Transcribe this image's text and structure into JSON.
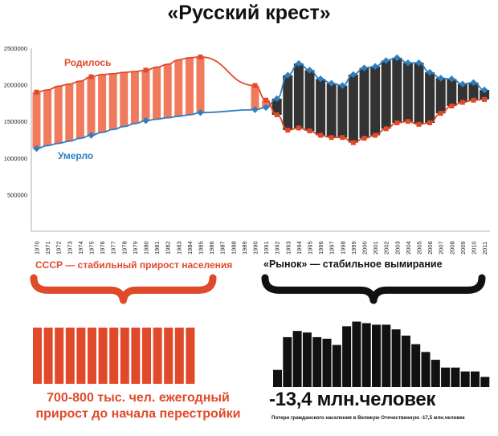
{
  "title": "«Русский крест»",
  "chart_data": {
    "type": "bar+line",
    "title": "«Русский крест»",
    "xlabel": "",
    "ylabel": "",
    "ylim": [
      0,
      2500000
    ],
    "y_ticks": [
      500000,
      1000000,
      1500000,
      2000000,
      2500000
    ],
    "x": [
      "1970",
      "1971",
      "1972",
      "1973",
      "1974",
      "1975",
      "1976",
      "1977",
      "1978",
      "1979",
      "1980",
      "1981",
      "1982",
      "1983",
      "1984",
      "1985",
      "1986",
      "1987",
      "1988",
      "1989",
      "1990",
      "1991",
      "1992",
      "1993",
      "1994",
      "1995",
      "1996",
      "1997",
      "1998",
      "1999",
      "2000",
      "2001",
      "2002",
      "2003",
      "2004",
      "2005",
      "2006",
      "2007",
      "2008",
      "2009",
      "2010",
      "2011"
    ],
    "series": [
      {
        "name": "Родилось",
        "color": "#e04a2a",
        "values": [
          1900000,
          1930000,
          1980000,
          2010000,
          2050000,
          2110000,
          2140000,
          2150000,
          2170000,
          2180000,
          2200000,
          2240000,
          2280000,
          2340000,
          2370000,
          2380000,
          null,
          null,
          null,
          null,
          1990000,
          1790000,
          1590000,
          1380000,
          1410000,
          1370000,
          1310000,
          1280000,
          1280000,
          1210000,
          1270000,
          1310000,
          1400000,
          1480000,
          1500000,
          1460000,
          1480000,
          1610000,
          1710000,
          1760000,
          1790000,
          1800000
        ]
      },
      {
        "name": "Умерло",
        "color": "#2e7fc0",
        "values": [
          1130000,
          1170000,
          1200000,
          1230000,
          1270000,
          1310000,
          1350000,
          1390000,
          1430000,
          1470000,
          1510000,
          1530000,
          1550000,
          1570000,
          1590000,
          1620000,
          null,
          null,
          null,
          null,
          1660000,
          1690000,
          1810000,
          2130000,
          2290000,
          2200000,
          2080000,
          2020000,
          1990000,
          2140000,
          2230000,
          2250000,
          2330000,
          2370000,
          2300000,
          2300000,
          2170000,
          2090000,
          2080000,
          2010000,
          2030000,
          1930000
        ]
      }
    ],
    "gap_years_with_line": [
      "1986",
      "1987",
      "1988",
      "1989"
    ],
    "bottom_bars": {
      "left_count": 15,
      "right_values": [
        0.22,
        0.64,
        0.72,
        0.7,
        0.64,
        0.62,
        0.54,
        0.78,
        0.84,
        0.82,
        0.8,
        0.8,
        0.74,
        0.66,
        0.55,
        0.45,
        0.35,
        0.25,
        0.25,
        0.2,
        0.2,
        0.13
      ]
    }
  },
  "captions": {
    "left": "СССР — стабильный прирост населения",
    "right": "«Рынок» — стабильное вымирание",
    "growth_line1": "700-800 тыс. чел. ежегодный",
    "growth_line2": "прирост до начала перестройки",
    "loss_total": "-13,4 млн.человек",
    "ww2_note": "Потери гражданского населения в Великую Отечественную -17,5 млн.человек"
  },
  "colors": {
    "births": "#e04a2a",
    "deaths": "#2e7fc0",
    "dark_bar": "#333333",
    "light_bar": "#f07a5c"
  }
}
